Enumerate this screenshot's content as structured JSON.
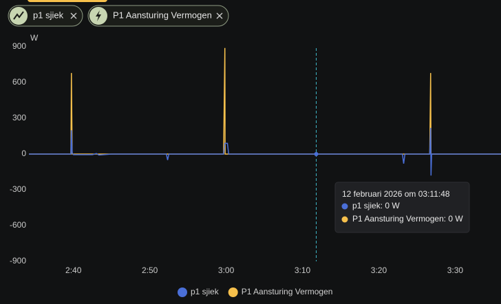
{
  "filters": [
    "p1 sjiek",
    "P1 Aansturing Vermogen"
  ],
  "chart_data": {
    "type": "line",
    "y_label": "W",
    "x": [
      "02:34:10",
      "02:39:30",
      "02:39:40",
      "02:39:44",
      "02:39:50",
      "02:40:00",
      "02:42:30",
      "02:43:00",
      "02:43:20",
      "02:45:00",
      "02:52:10",
      "02:52:20",
      "02:52:30",
      "02:59:40",
      "02:59:50",
      "02:59:52",
      "03:00:10",
      "03:00:20",
      "03:11:48",
      "03:23:05",
      "03:23:15",
      "03:23:25",
      "03:26:40",
      "03:26:47",
      "03:26:50",
      "03:26:55",
      "03:36:00"
    ],
    "series": [
      {
        "name": "p1 sjiek",
        "color": "#4a6fd8",
        "values": [
          0,
          0,
          0,
          200,
          10,
          -5,
          -5,
          5,
          -8,
          0,
          0,
          -50,
          0,
          0,
          90,
          90,
          90,
          0,
          0,
          0,
          -80,
          0,
          0,
          220,
          -180,
          0,
          0
        ]
      },
      {
        "name": "P1 Aansturing Vermogen",
        "color": "#f6c04c",
        "values": [
          0,
          0,
          0,
          680,
          0,
          0,
          0,
          0,
          0,
          0,
          0,
          0,
          0,
          0,
          890,
          0,
          0,
          0,
          0,
          0,
          0,
          0,
          0,
          680,
          0,
          0,
          0
        ]
      }
    ],
    "xlim": [
      "02:34:10",
      "03:36:00"
    ],
    "xticks": [
      {
        "value": "02:40:00",
        "label": "2:40"
      },
      {
        "value": "02:50:00",
        "label": "2:50"
      },
      {
        "value": "03:00:00",
        "label": "3:00"
      },
      {
        "value": "03:10:00",
        "label": "3:10"
      },
      {
        "value": "03:20:00",
        "label": "3:20"
      },
      {
        "value": "03:30:00",
        "label": "3:30"
      }
    ],
    "ylim": [
      -900,
      900
    ],
    "yticks": [
      900,
      600,
      300,
      0,
      -300,
      -600,
      -900
    ],
    "grid": false,
    "tooltip": {
      "x": "03:11:48",
      "title": "12 februari 2026 om 03:11:48",
      "lines": [
        "p1 sjiek: 0 W",
        "P1 Aansturing Vermogen: 0 W"
      ]
    }
  }
}
